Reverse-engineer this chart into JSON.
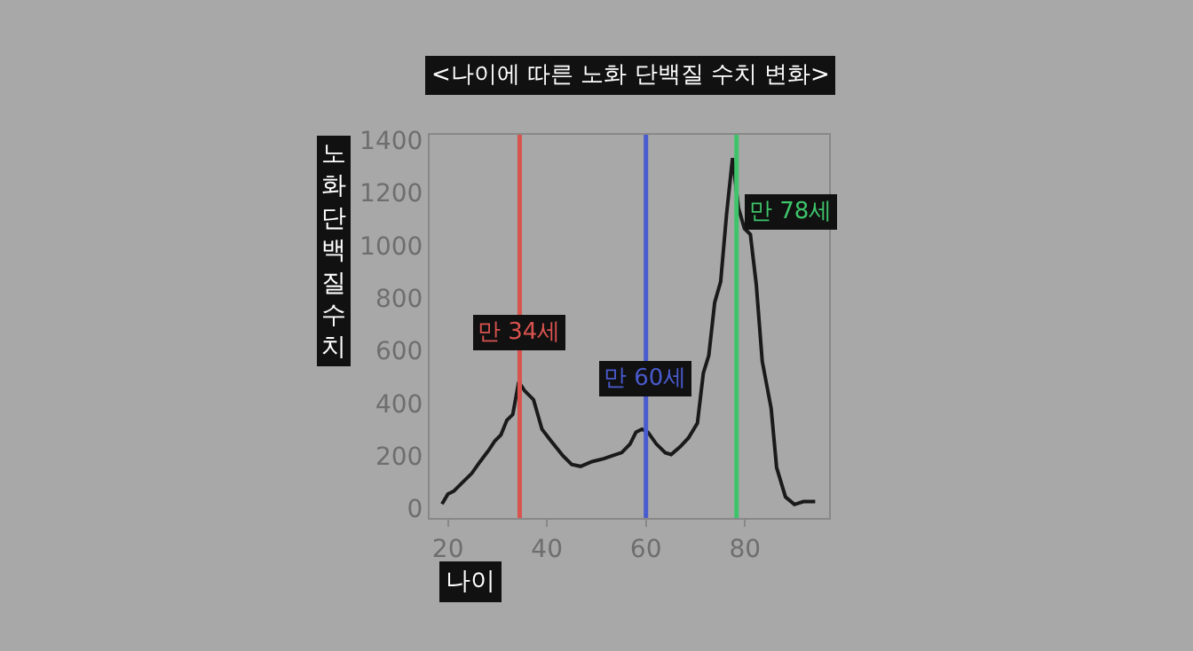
{
  "chart_data": {
    "type": "line",
    "title": "<나이에 따른 노화 단백질 수치 변화>",
    "xlabel": "나이",
    "ylabel": "노화 단백질 수치",
    "x": [
      18.8,
      20,
      21.2,
      23,
      24.8,
      26.5,
      28.3,
      29.5,
      30.7,
      31.9,
      33.1,
      34.3,
      35.5,
      37.3,
      39,
      40.8,
      43.2,
      45,
      46.8,
      49.1,
      51.5,
      53.3,
      55.1,
      56.8,
      58,
      59.2,
      60.4,
      62.1,
      63.9,
      65.1,
      66.9,
      68.6,
      70.4,
      71.6,
      72.7,
      73.9,
      75.1,
      76.3,
      77.5,
      78.7,
      79.9,
      81.1,
      82.3,
      83.5,
      85.3,
      86.4,
      88.2,
      90,
      91.8,
      94.2
    ],
    "series": [
      {
        "color": "#1a1a1a",
        "values": [
          18,
          56,
          67,
          101,
          134,
          179,
          224,
          258,
          280,
          336,
          358,
          482,
          448,
          414,
          302,
          258,
          202,
          168,
          161,
          179,
          190,
          202,
          213,
          246,
          291,
          302,
          291,
          246,
          213,
          206,
          235,
          269,
          325,
          515,
          582,
          784,
          862,
          1120,
          1332,
          1142,
          1064,
          1042,
          851,
          560,
          381,
          157,
          45,
          16,
          27,
          27
        ]
      }
    ],
    "xlim": [
      16.3,
      97
    ],
    "ylim": [
      -35,
      1420
    ],
    "xticks": [
      20,
      40,
      60,
      80
    ],
    "yticks": [
      0,
      200,
      400,
      600,
      800,
      1000,
      1200,
      1400
    ],
    "ref_lines": [
      {
        "axis": "x",
        "value": 34.5,
        "label": "만 34세",
        "color": "#d9534f"
      },
      {
        "axis": "x",
        "value": 60,
        "label": "만 60세",
        "color": "#4a5bd0"
      },
      {
        "axis": "x",
        "value": 78.3,
        "label": "만 78세",
        "color": "#3ec46a"
      }
    ],
    "grid": false,
    "legend": false,
    "marker": "none",
    "line_style": "solid"
  }
}
